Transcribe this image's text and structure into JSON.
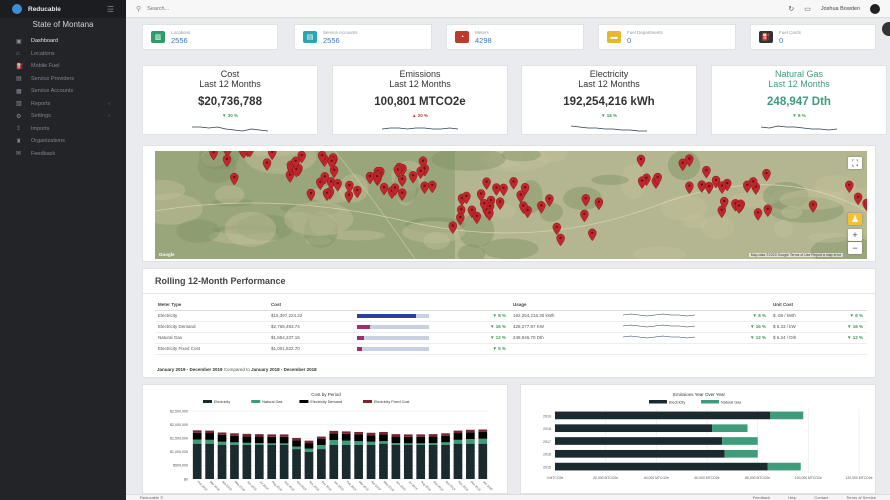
{
  "app": {
    "name": "Reducable",
    "org": "State of Montana"
  },
  "sidebar": {
    "items": [
      {
        "label": "Dashboard",
        "icon": "dashboard-icon",
        "active": true
      },
      {
        "label": "Locations",
        "icon": "location-icon"
      },
      {
        "label": "Mobile Fuel",
        "icon": "fuel-icon"
      },
      {
        "label": "Service Providers",
        "icon": "provider-icon"
      },
      {
        "label": "Service Accounts",
        "icon": "account-icon"
      },
      {
        "label": "Reports",
        "icon": "reports-icon",
        "chevron": true
      },
      {
        "label": "Settings",
        "icon": "settings-icon",
        "chevron": true
      },
      {
        "label": "Imports",
        "icon": "import-icon"
      },
      {
        "label": "Organizations",
        "icon": "organization-icon"
      },
      {
        "label": "Feedback",
        "icon": "feedback-icon"
      }
    ]
  },
  "topbar": {
    "search_placeholder": "Search...",
    "user": "Joshua Bowden"
  },
  "stats": [
    {
      "label": "Locations",
      "value": "2556",
      "color": "#2e9b6a",
      "icon": "building-icon"
    },
    {
      "label": "Service Accounts",
      "value": "2556",
      "color": "#2aa6b0",
      "icon": "account-icon"
    },
    {
      "label": "Meters",
      "value": "4298",
      "color": "#c0392b",
      "icon": "meter-icon"
    },
    {
      "label": "Fuel Departments",
      "value": "0",
      "color": "#e6b62e",
      "icon": "truck-icon"
    },
    {
      "label": "Fuel Cards",
      "value": "0",
      "color": "#333333",
      "icon": "gas-pump-icon"
    }
  ],
  "kpis": [
    {
      "t1": "Cost",
      "t2": "Last 12 Months",
      "value": "$20,736,788",
      "change": "▼ 30 %",
      "dir": "up"
    },
    {
      "t1": "Emissions",
      "t2": "Last 12 Months",
      "value": "100,801 MTCO2e",
      "change": "▲ 20 %",
      "dir": "down"
    },
    {
      "t1": "Electricity",
      "t2": "Last 12 Months",
      "value": "192,254,216 kWh",
      "change": "▼ 18 %",
      "dir": "up"
    },
    {
      "t1": "Natural Gas",
      "t2": "Last 12 Months",
      "value": "248,947 Dth",
      "change": "▼ 9 %",
      "dir": "up"
    }
  ],
  "map": {
    "attribution": "Map data ©2020 Google  Terms of Use  Report a map error",
    "logo": "Google",
    "markers": 115
  },
  "performance": {
    "title": "Rolling 12-Month Performance",
    "headers": {
      "type": "Meter Type",
      "cost": "Cost",
      "usage": "Usage",
      "unit": "Unit Cost"
    },
    "rows": [
      {
        "type": "Electricity",
        "cost": "$15,397,224.22",
        "cost_share": 0.82,
        "cost_pct": "▼ 8 %",
        "usage": "192,254,216.30 kWh",
        "usage_pct": "▼ 8 %",
        "unit": "$ .08 / kWh",
        "unit_pct": "▼ 8 %"
      },
      {
        "type": "Electricity Demand",
        "cost": "$2,765,493.74",
        "cost_share": 0.18,
        "cost_pct": "▼ 16 %",
        "usage": "428,277.97 KW",
        "usage_pct": "▼ 16 %",
        "unit": "$ 6.33 / kW",
        "unit_pct": "▼ 16 %"
      },
      {
        "type": "Natural Gas",
        "cost": "$1,554,237.15",
        "cost_share": 0.1,
        "cost_pct": "▼ 12 %",
        "usage": "248,946.70 Dth",
        "usage_pct": "▼ 12 %",
        "unit": "$ 6.24 / Dth",
        "unit_pct": "▼ 12 %"
      },
      {
        "type": "Electricity Fixed Cost",
        "cost": "$1,001,822.70",
        "cost_share": 0.07,
        "cost_pct": "▼ 5 %",
        "usage": "",
        "usage_pct": "",
        "unit": "",
        "unit_pct": ""
      }
    ],
    "period": "January 2019 - December 2019",
    "compared_text": "Compared to",
    "compare_period": "January 2018 - December 2018"
  },
  "chart_data": [
    {
      "type": "bar",
      "title": "Cost by Period",
      "categories": [
        "Feb 2018",
        "Mar 2018",
        "Apr 2018",
        "May 2018",
        "Jun 2018",
        "Jul 2018",
        "Aug 2018",
        "Sep 2018",
        "Oct 2018",
        "Nov 2018",
        "Dec 2018",
        "Jan 2019",
        "Feb 2019",
        "Mar 2019",
        "Apr 2019",
        "May 2019",
        "Jun 2019",
        "Jul 2019",
        "Aug 2019",
        "Sep 2019",
        "Oct 2019",
        "Nov 2019",
        "Dec 2019",
        "Jan 2020"
      ],
      "series": [
        {
          "name": "Electricity",
          "color": "#1a2a2e",
          "values": [
            1300000,
            1300000,
            1250000,
            1250000,
            1250000,
            1250000,
            1250000,
            1250000,
            1100000,
            1000000,
            1100000,
            1250000,
            1250000,
            1250000,
            1250000,
            1300000,
            1250000,
            1250000,
            1250000,
            1250000,
            1250000,
            1300000,
            1300000,
            1300000
          ]
        },
        {
          "name": "Natural Gas",
          "color": "#3e9c7a",
          "values": [
            150000,
            140000,
            120000,
            100000,
            80000,
            70000,
            60000,
            60000,
            90000,
            120000,
            150000,
            180000,
            160000,
            140000,
            120000,
            90000,
            70000,
            60000,
            60000,
            70000,
            100000,
            140000,
            170000,
            180000
          ]
        },
        {
          "name": "Electricity Demand",
          "color": "#000000",
          "values": [
            250000,
            250000,
            250000,
            240000,
            240000,
            240000,
            240000,
            240000,
            230000,
            200000,
            220000,
            250000,
            250000,
            250000,
            240000,
            250000,
            240000,
            240000,
            240000,
            240000,
            240000,
            250000,
            250000,
            250000
          ]
        },
        {
          "name": "Electricity Fixed Cost",
          "color": "#7a2432",
          "values": [
            90000,
            90000,
            90000,
            90000,
            90000,
            90000,
            90000,
            90000,
            90000,
            90000,
            90000,
            90000,
            90000,
            90000,
            90000,
            90000,
            90000,
            90000,
            90000,
            90000,
            90000,
            90000,
            90000,
            90000
          ]
        }
      ],
      "yticks": [
        "$0",
        "$500,000",
        "$1,000,000",
        "$1,500,000",
        "$2,000,000",
        "$2,500,000"
      ],
      "ylim": [
        0,
        2500000
      ],
      "legend": "top"
    },
    {
      "type": "bar",
      "orientation": "horizontal",
      "title": "Emissions Year Over Year",
      "categories": [
        "2019",
        "2018",
        "2017",
        "2016",
        "2015"
      ],
      "series": [
        {
          "name": "Electricity",
          "color": "#1a2a2e",
          "values": [
            85000,
            62000,
            66000,
            67000,
            84000
          ]
        },
        {
          "name": "Natural Gas",
          "color": "#3e9c7a",
          "values": [
            13000,
            14000,
            14000,
            13000,
            13000
          ]
        }
      ],
      "xticks": [
        "0 MTCO2e",
        "20,000 MTCO2e",
        "40,000 MTCO2e",
        "60,000 MTCO2e",
        "80,000 MTCO2e",
        "100,000 MTCO2e",
        "120,000 MTCO2e"
      ],
      "xlim": [
        0,
        120000
      ],
      "legend": "top"
    }
  ],
  "footer": {
    "brand": "Reducable ©",
    "links": [
      "Feedback",
      "Help",
      "Contact",
      "Terms of Service"
    ]
  }
}
